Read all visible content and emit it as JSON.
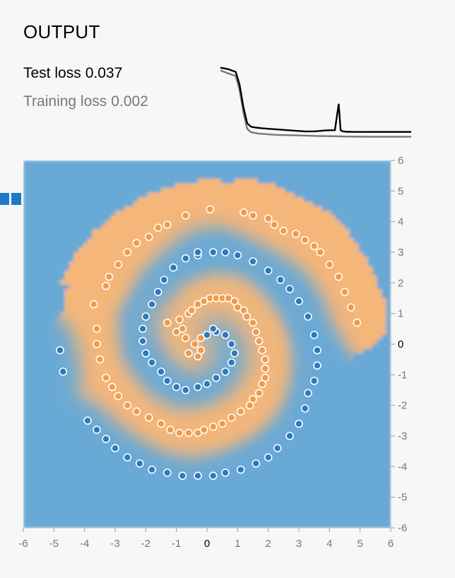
{
  "output": {
    "title": "OUTPUT",
    "test_loss_label": "Test loss",
    "test_loss_value": "0.037",
    "training_loss_label": "Training loss",
    "training_loss_value": "0.002"
  },
  "colors": {
    "positive": "#f5b679",
    "negative": "#69a9d5",
    "orange_point": "#f29b47",
    "blue_point": "#2a7bbf",
    "background": "#f7f7f7"
  },
  "chart_data": [
    {
      "type": "line",
      "name": "loss-curve",
      "x_range": [
        0,
        100
      ],
      "y_range": [
        0,
        0.55
      ],
      "series": [
        {
          "name": "Test loss",
          "color": "#000000",
          "x": [
            0,
            4,
            8,
            10,
            12,
            14,
            16,
            18,
            20,
            22,
            25,
            30,
            35,
            40,
            45,
            50,
            55,
            60,
            62,
            63,
            64,
            65,
            66,
            68,
            70,
            75,
            80,
            90,
            100
          ],
          "y": [
            0.5,
            0.49,
            0.47,
            0.38,
            0.22,
            0.1,
            0.075,
            0.07,
            0.066,
            0.063,
            0.06,
            0.055,
            0.05,
            0.045,
            0.04,
            0.042,
            0.048,
            0.05,
            0.24,
            0.05,
            0.042,
            0.04,
            0.038,
            0.038,
            0.037,
            0.037,
            0.037,
            0.037,
            0.037
          ]
        },
        {
          "name": "Training loss",
          "color": "#777777",
          "x": [
            0,
            4,
            8,
            10,
            12,
            14,
            16,
            18,
            20,
            25,
            30,
            40,
            50,
            60,
            65,
            70,
            80,
            90,
            100
          ],
          "y": [
            0.48,
            0.46,
            0.44,
            0.34,
            0.18,
            0.06,
            0.035,
            0.03,
            0.025,
            0.02,
            0.016,
            0.012,
            0.008,
            0.006,
            0.004,
            0.003,
            0.002,
            0.002,
            0.002
          ]
        }
      ]
    },
    {
      "type": "scatter",
      "name": "spiral-classification",
      "xlim": [
        -6,
        6
      ],
      "ylim": [
        -6,
        6
      ],
      "x_ticks": [
        "-6",
        "-5",
        "-4",
        "-3",
        "-2",
        "-1",
        "0",
        "1",
        "2",
        "3",
        "4",
        "5",
        "6"
      ],
      "y_ticks": [
        "6",
        "5",
        "4",
        "3",
        "2",
        "1",
        "0",
        "-1",
        "-2",
        "-3",
        "-4",
        "-5",
        "-6"
      ],
      "series": [
        {
          "name": "orange",
          "color": "#f29b47",
          "points": [
            [
              -0.6,
              -0.3
            ],
            [
              -0.4,
              0.0
            ],
            [
              -0.3,
              -0.4
            ],
            [
              -0.2,
              0.2
            ],
            [
              -0.2,
              -0.2
            ],
            [
              -0.7,
              0.2
            ],
            [
              -0.8,
              0.5
            ],
            [
              -0.9,
              0.8
            ],
            [
              -0.6,
              1.0
            ],
            [
              -0.5,
              1.1
            ],
            [
              -0.3,
              1.3
            ],
            [
              -0.1,
              1.4
            ],
            [
              0.1,
              1.5
            ],
            [
              0.3,
              1.5
            ],
            [
              0.5,
              1.5
            ],
            [
              0.7,
              1.5
            ],
            [
              0.9,
              1.4
            ],
            [
              1.0,
              1.2
            ],
            [
              1.2,
              1.1
            ],
            [
              1.3,
              0.9
            ],
            [
              1.5,
              0.7
            ],
            [
              1.6,
              0.4
            ],
            [
              1.7,
              0.1
            ],
            [
              1.8,
              -0.2
            ],
            [
              1.9,
              -0.5
            ],
            [
              1.9,
              -0.8
            ],
            [
              1.9,
              -1.1
            ],
            [
              1.8,
              -1.3
            ],
            [
              1.7,
              -1.6
            ],
            [
              1.5,
              -1.8
            ],
            [
              1.4,
              -2.0
            ],
            [
              1.1,
              -2.2
            ],
            [
              0.8,
              -2.4
            ],
            [
              0.5,
              -2.6
            ],
            [
              0.2,
              -2.7
            ],
            [
              -0.1,
              -2.8
            ],
            [
              -0.3,
              -2.9
            ],
            [
              -0.6,
              -2.9
            ],
            [
              -0.9,
              -2.9
            ],
            [
              -1.2,
              -2.8
            ],
            [
              -1.5,
              -2.6
            ],
            [
              -1.9,
              -2.4
            ],
            [
              -2.3,
              -2.2
            ],
            [
              -2.6,
              -2.0
            ],
            [
              -2.9,
              -1.7
            ],
            [
              -3.1,
              -1.4
            ],
            [
              -3.3,
              -1.1
            ],
            [
              -3.5,
              -0.5
            ],
            [
              -3.6,
              0.0
            ],
            [
              -3.6,
              0.5
            ],
            [
              -3.7,
              1.3
            ],
            [
              -3.3,
              1.9
            ],
            [
              -3.2,
              2.2
            ],
            [
              -2.9,
              2.6
            ],
            [
              -2.6,
              3.0
            ],
            [
              -2.3,
              3.3
            ],
            [
              -1.9,
              3.5
            ],
            [
              -1.6,
              3.8
            ],
            [
              -1.3,
              3.9
            ],
            [
              -0.7,
              4.2
            ],
            [
              0.1,
              4.4
            ],
            [
              1.2,
              4.3
            ],
            [
              1.5,
              4.2
            ],
            [
              2.0,
              4.1
            ],
            [
              2.2,
              3.9
            ],
            [
              2.5,
              3.7
            ],
            [
              2.9,
              3.6
            ],
            [
              3.2,
              3.4
            ],
            [
              3.5,
              3.2
            ],
            [
              3.7,
              3.0
            ],
            [
              4.0,
              2.6
            ],
            [
              4.3,
              2.2
            ],
            [
              4.5,
              1.7
            ],
            [
              4.7,
              1.2
            ],
            [
              4.9,
              0.7
            ],
            [
              -1.3,
              0.7
            ],
            [
              -1.0,
              0.4
            ]
          ]
        },
        {
          "name": "blue",
          "color": "#2a7bbf",
          "points": [
            [
              0.0,
              0.3
            ],
            [
              0.3,
              0.4
            ],
            [
              0.6,
              0.3
            ],
            [
              0.8,
              0.0
            ],
            [
              0.9,
              -0.3
            ],
            [
              0.8,
              -0.6
            ],
            [
              0.6,
              -0.9
            ],
            [
              0.3,
              -1.1
            ],
            [
              0.0,
              -1.3
            ],
            [
              -0.3,
              -1.4
            ],
            [
              -0.7,
              -1.5
            ],
            [
              -1.0,
              -1.4
            ],
            [
              -1.3,
              -1.2
            ],
            [
              -1.5,
              -0.9
            ],
            [
              -1.8,
              -0.6
            ],
            [
              -2.0,
              -0.3
            ],
            [
              -2.1,
              0.1
            ],
            [
              -2.1,
              0.5
            ],
            [
              -2.0,
              0.9
            ],
            [
              -1.8,
              1.3
            ],
            [
              -1.6,
              1.7
            ],
            [
              -1.4,
              2.1
            ],
            [
              -1.1,
              2.5
            ],
            [
              -0.7,
              2.8
            ],
            [
              -0.3,
              2.9
            ],
            [
              0.2,
              3.0
            ],
            [
              0.6,
              3.0
            ],
            [
              1.0,
              2.9
            ],
            [
              1.5,
              2.7
            ],
            [
              2.0,
              2.4
            ],
            [
              2.4,
              2.1
            ],
            [
              2.7,
              1.8
            ],
            [
              3.0,
              1.4
            ],
            [
              3.3,
              0.9
            ],
            [
              3.5,
              0.3
            ],
            [
              3.6,
              -0.2
            ],
            [
              3.6,
              -0.7
            ],
            [
              3.5,
              -1.2
            ],
            [
              3.3,
              -1.6
            ],
            [
              3.2,
              -2.1
            ],
            [
              3.0,
              -2.6
            ],
            [
              2.7,
              -3.0
            ],
            [
              2.3,
              -3.4
            ],
            [
              2.0,
              -3.7
            ],
            [
              1.6,
              -3.9
            ],
            [
              1.1,
              -4.1
            ],
            [
              0.6,
              -4.2
            ],
            [
              0.2,
              -4.3
            ],
            [
              -0.3,
              -4.3
            ],
            [
              -0.8,
              -4.3
            ],
            [
              -1.3,
              -4.2
            ],
            [
              -1.8,
              -4.1
            ],
            [
              -2.2,
              -3.9
            ],
            [
              -2.6,
              -3.7
            ],
            [
              -3.0,
              -3.4
            ],
            [
              -3.3,
              -3.1
            ],
            [
              -3.6,
              -2.8
            ],
            [
              -3.9,
              -2.5
            ],
            [
              -4.8,
              -0.2
            ],
            [
              -4.7,
              -0.9
            ],
            [
              -0.3,
              3.0
            ],
            [
              0.2,
              0.5
            ]
          ]
        }
      ]
    }
  ]
}
